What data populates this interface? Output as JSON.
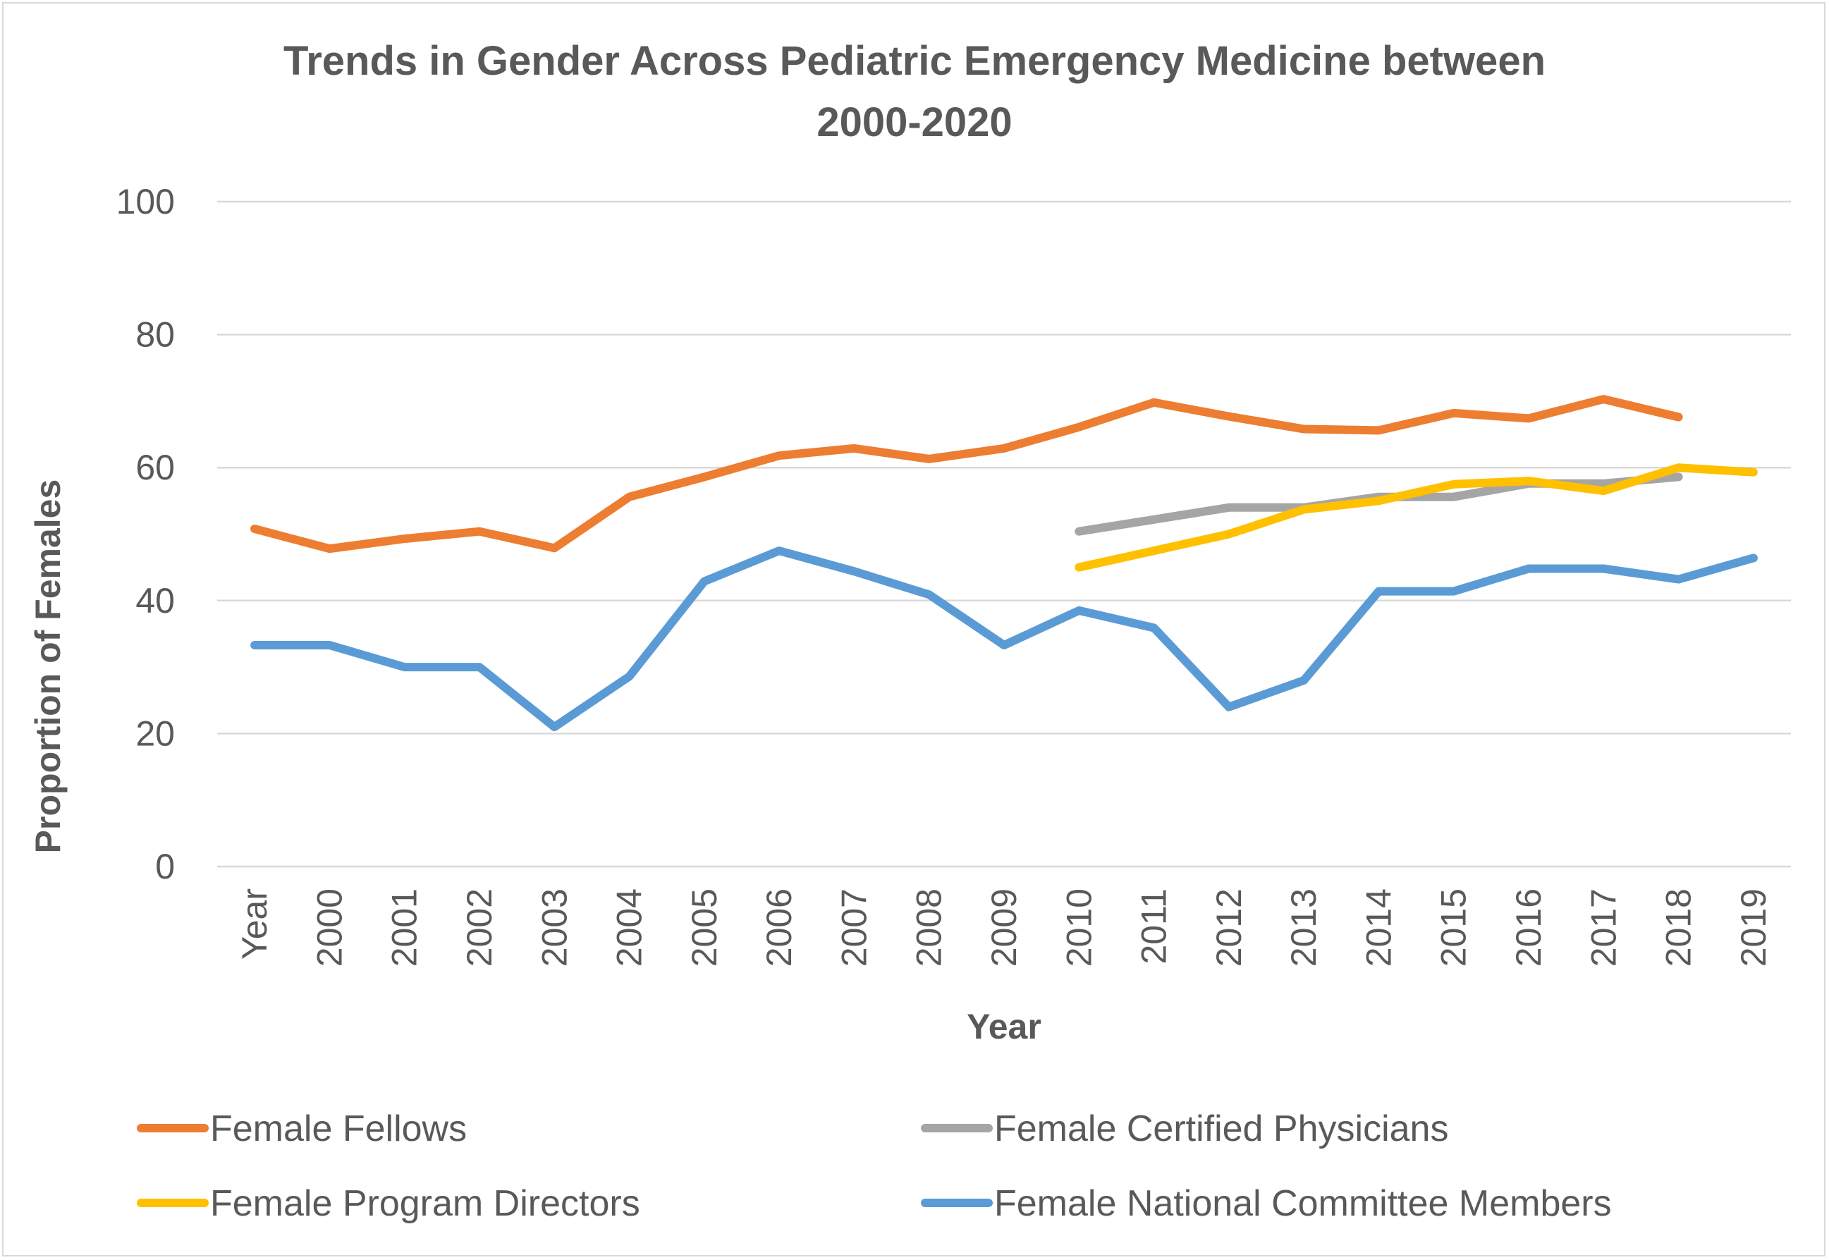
{
  "chart_data": {
    "type": "line",
    "title_lines": [
      "Trends in Gender Across Pediatric Emergency Medicine between",
      "2000-2020"
    ],
    "xlabel": "Year",
    "ylabel": "Proportion of Females",
    "ylim": [
      0,
      100
    ],
    "yticks": [
      "0",
      "20",
      "40",
      "60",
      "80",
      "100"
    ],
    "categories": [
      "Year",
      "2000",
      "2001",
      "2002",
      "2003",
      "2004",
      "2005",
      "2006",
      "2007",
      "2008",
      "2009",
      "2010",
      "2011",
      "2012",
      "2013",
      "2014",
      "2015",
      "2016",
      "2017",
      "2018",
      "2019"
    ],
    "grid": true,
    "legend_position": "bottom",
    "series": [
      {
        "name": "Female Fellows",
        "color": "#ED7D31",
        "values": [
          50.8,
          47.8,
          49.3,
          50.4,
          47.9,
          55.6,
          58.6,
          61.8,
          62.9,
          61.3,
          62.9,
          66.1,
          69.8,
          67.7,
          65.8,
          65.6,
          68.2,
          67.4,
          70.3,
          67.6,
          null
        ]
      },
      {
        "name": "Female Certified Physicians",
        "color": "#A5A5A5",
        "values": [
          null,
          null,
          null,
          null,
          null,
          null,
          null,
          null,
          null,
          null,
          null,
          50.4,
          52.2,
          54.0,
          54.0,
          55.6,
          55.6,
          57.6,
          57.6,
          58.6,
          null
        ]
      },
      {
        "name": "Female Program Directors",
        "color": "#FFC000",
        "values": [
          null,
          null,
          null,
          null,
          null,
          null,
          null,
          null,
          null,
          null,
          null,
          45.0,
          47.5,
          50.0,
          53.7,
          55.0,
          57.5,
          58.0,
          56.5,
          60.0,
          59.3
        ]
      },
      {
        "name": "Female National Committee Members",
        "color": "#5B9BD5",
        "values": [
          33.3,
          33.3,
          30.0,
          30.0,
          21.0,
          28.6,
          42.9,
          47.5,
          44.4,
          40.9,
          33.3,
          38.5,
          35.9,
          24.0,
          28.0,
          41.4,
          41.4,
          44.8,
          44.8,
          43.2,
          46.4
        ]
      }
    ]
  }
}
